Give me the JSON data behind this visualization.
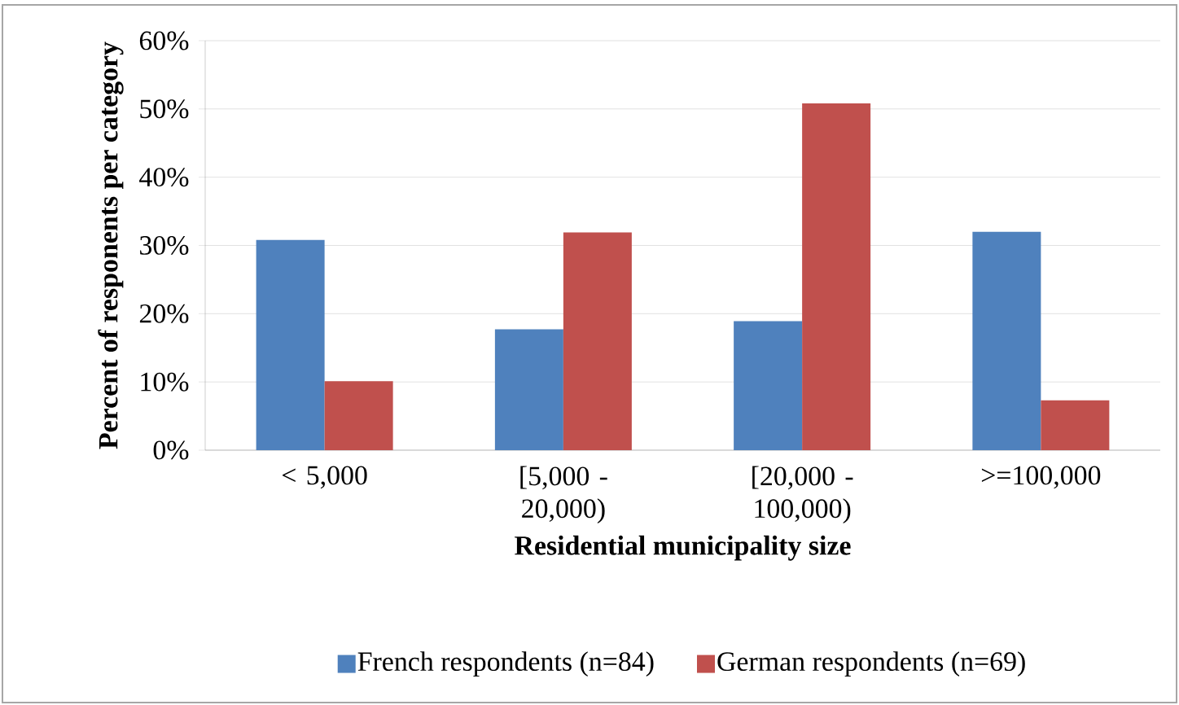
{
  "chart_data": {
    "type": "bar",
    "xlabel": "Residential municipality size",
    "ylabel": "Percent of responents per category",
    "categories": [
      "< 5,000",
      "[5,000 - 20,000)",
      "[20,000 - 100,000)",
      ">=100,000"
    ],
    "series": [
      {
        "name": "French respondents (n=84)",
        "color": "#4f81bd",
        "values": [
          30.8,
          17.7,
          18.9,
          32.0
        ]
      },
      {
        "name": "German respondents (n=69)",
        "color": "#c0504d",
        "values": [
          10.1,
          31.9,
          50.8,
          7.3
        ]
      }
    ],
    "ylim": [
      0,
      60
    ],
    "yticks": [
      {
        "value": 0,
        "label": "0%"
      },
      {
        "value": 10,
        "label": "10%"
      },
      {
        "value": 20,
        "label": "20%"
      },
      {
        "value": 30,
        "label": "30%"
      },
      {
        "value": 40,
        "label": "40%"
      },
      {
        "value": 50,
        "label": "50%"
      },
      {
        "value": 60,
        "label": "60%"
      }
    ],
    "grid": "y",
    "legend": "bottom"
  }
}
